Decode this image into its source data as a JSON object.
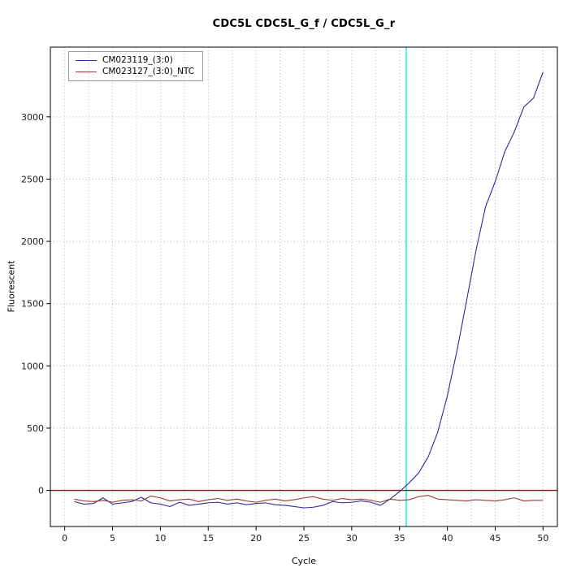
{
  "title": "CDC5L  CDC5L_G_f / CDC5L_G_r",
  "chart_data": {
    "type": "line",
    "title": "CDC5L  CDC5L_G_f / CDC5L_G_r",
    "xlabel": "Cycle",
    "ylabel": "Fluorescent",
    "xlim": [
      -1.5,
      51.5
    ],
    "ylim": [
      -290,
      3560
    ],
    "x_ticks": [
      0,
      5,
      10,
      15,
      20,
      25,
      30,
      35,
      40,
      45,
      50
    ],
    "y_ticks": [
      0,
      500,
      1000,
      1500,
      2000,
      2500,
      3000
    ],
    "grid": true,
    "legend_position": "top-left",
    "threshold_line_y": 0,
    "ct_line_x": 35.7,
    "colors": {
      "sample": "#2b2b9a",
      "ntc": "#9e3b32",
      "ct_line": "#00e5e5",
      "threshold": "#8b1a1a",
      "gridline": "#b3b3b3",
      "axis": "#000000"
    },
    "x": [
      1,
      2,
      3,
      4,
      5,
      6,
      7,
      8,
      9,
      10,
      11,
      12,
      13,
      14,
      15,
      16,
      17,
      18,
      19,
      20,
      21,
      22,
      23,
      24,
      25,
      26,
      27,
      28,
      29,
      30,
      31,
      32,
      33,
      34,
      35,
      36,
      37,
      38,
      39,
      40,
      41,
      42,
      43,
      44,
      45,
      46,
      47,
      48,
      49,
      50
    ],
    "series": [
      {
        "name": "CM023119_(3:0)",
        "color": "#2b2b9a",
        "values": [
          -90,
          -110,
          -105,
          -60,
          -110,
          -100,
          -90,
          -55,
          -100,
          -110,
          -130,
          -95,
          -120,
          -110,
          -100,
          -95,
          -110,
          -100,
          -115,
          -105,
          -100,
          -115,
          -120,
          -130,
          -140,
          -135,
          -120,
          -90,
          -100,
          -95,
          -85,
          -95,
          -120,
          -70,
          -10,
          60,
          140,
          270,
          470,
          760,
          1120,
          1520,
          1930,
          2280,
          2480,
          2720,
          2880,
          3080,
          3150,
          3360
        ]
      },
      {
        "name": "CM023127_(3:0)_NTC",
        "color": "#9e3b32",
        "values": [
          -70,
          -85,
          -90,
          -80,
          -95,
          -80,
          -75,
          -85,
          -45,
          -60,
          -85,
          -75,
          -70,
          -90,
          -75,
          -65,
          -80,
          -70,
          -85,
          -95,
          -80,
          -70,
          -85,
          -75,
          -60,
          -50,
          -70,
          -80,
          -65,
          -75,
          -70,
          -80,
          -95,
          -70,
          -80,
          -75,
          -50,
          -40,
          -70,
          -75,
          -80,
          -85,
          -75,
          -80,
          -85,
          -75,
          -60,
          -85,
          -80,
          -80
        ]
      }
    ]
  }
}
